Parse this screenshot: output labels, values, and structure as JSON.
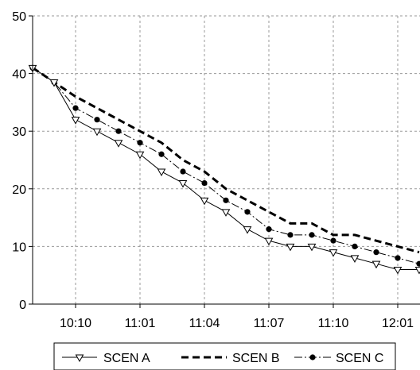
{
  "chart_data": {
    "type": "line",
    "title": "",
    "xlabel": "",
    "ylabel": "",
    "ylim": [
      0,
      50
    ],
    "yticks": [
      0,
      10,
      20,
      30,
      40,
      50
    ],
    "x": [
      "",
      "",
      "10:10",
      "",
      "",
      "11:01",
      "",
      "",
      "11:04",
      "",
      "",
      "11:07",
      "",
      "",
      "11:10",
      "",
      "",
      "12:01",
      ""
    ],
    "grid": true,
    "legend_position": "bottom",
    "series": [
      {
        "name": "SCEN A",
        "style": "solid",
        "marker": "triangle-down",
        "values": [
          41,
          38.5,
          32,
          30,
          28,
          26,
          23,
          21,
          18,
          16,
          13,
          11,
          10,
          10,
          9,
          8,
          7,
          6,
          6
        ]
      },
      {
        "name": "SCEN B",
        "style": "dashed-bold",
        "marker": "none",
        "values": [
          41,
          38.5,
          36,
          34,
          32,
          30,
          28,
          25,
          23,
          20,
          18,
          16,
          14,
          14,
          12,
          12,
          11,
          10,
          9
        ]
      },
      {
        "name": "SCEN C",
        "style": "dashdot",
        "marker": "circle",
        "values": [
          41,
          38.5,
          34,
          32,
          30,
          28,
          26,
          23,
          21,
          18,
          16,
          13,
          12,
          12,
          11,
          10,
          9,
          8,
          7
        ]
      }
    ]
  }
}
